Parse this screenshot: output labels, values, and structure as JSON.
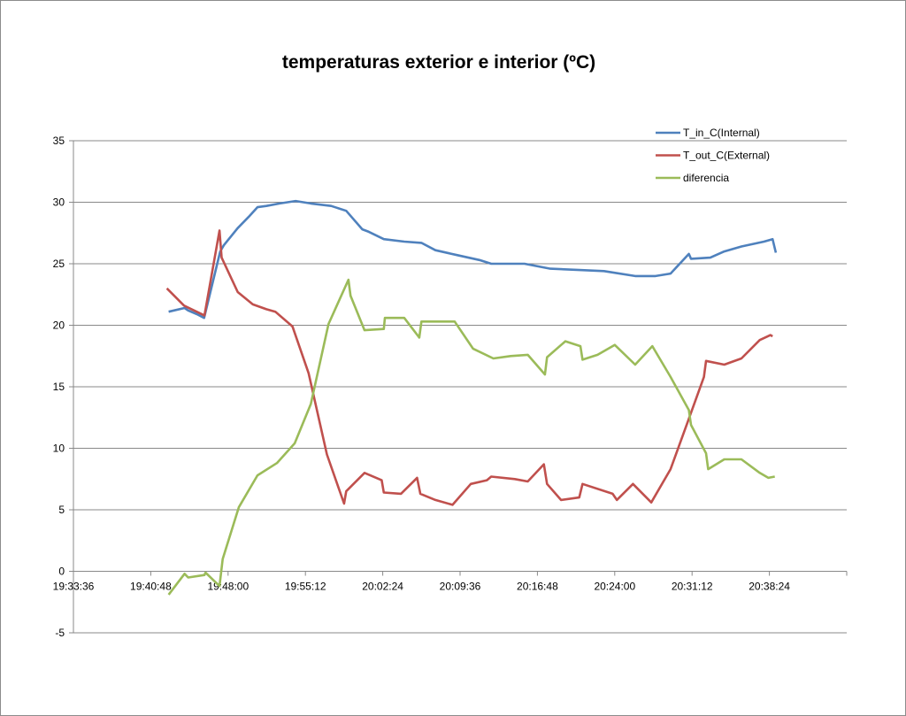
{
  "chart_data": {
    "type": "line",
    "title": "temperaturas exterior e interior (ºC)",
    "xlabel": "",
    "ylabel": "",
    "ylim": [
      -5,
      35
    ],
    "yticks": [
      "-5",
      "0",
      "5",
      "10",
      "15",
      "20",
      "25",
      "30",
      "35"
    ],
    "xlim": [
      "19:33:36",
      "20:45:36"
    ],
    "xticks": [
      "19:33:36",
      "19:40:48",
      "19:48:00",
      "19:55:12",
      "20:02:24",
      "20:09:36",
      "20:16:48",
      "20:24:00",
      "20:31:12",
      "20:38:24"
    ],
    "grid": true,
    "legend_position": "top-right",
    "series": [
      {
        "name": "T_in_C(Internal)",
        "color": "#4f81bd",
        "points": [
          [
            "19:42:28",
            21.1
          ],
          [
            "19:43:57",
            21.4
          ],
          [
            "19:44:17",
            21.2
          ],
          [
            "19:45:06",
            20.9
          ],
          [
            "19:45:46",
            20.6
          ],
          [
            "19:47:16",
            26.0
          ],
          [
            "19:47:36",
            26.5
          ],
          [
            "19:48:54",
            27.9
          ],
          [
            "19:49:54",
            28.8
          ],
          [
            "19:50:44",
            29.6
          ],
          [
            "19:51:34",
            29.7
          ],
          [
            "19:52:48",
            29.9
          ],
          [
            "19:54:17",
            30.1
          ],
          [
            "19:55:42",
            29.9
          ],
          [
            "19:57:36",
            29.7
          ],
          [
            "19:59:00",
            29.3
          ],
          [
            "20:00:30",
            27.8
          ],
          [
            "20:01:06",
            27.6
          ],
          [
            "20:02:30",
            27.0
          ],
          [
            "20:04:24",
            26.8
          ],
          [
            "20:06:00",
            26.7
          ],
          [
            "20:07:18",
            26.1
          ],
          [
            "20:09:21",
            25.7
          ],
          [
            "20:11:24",
            25.3
          ],
          [
            "20:12:30",
            25.0
          ],
          [
            "20:15:36",
            25.0
          ],
          [
            "20:18:00",
            24.6
          ],
          [
            "20:20:30",
            24.5
          ],
          [
            "20:23:00",
            24.4
          ],
          [
            "20:25:54",
            24.0
          ],
          [
            "20:27:48",
            24.0
          ],
          [
            "20:29:12",
            24.2
          ],
          [
            "20:30:54",
            25.8
          ],
          [
            "20:31:06",
            25.4
          ],
          [
            "20:32:54",
            25.5
          ],
          [
            "20:34:12",
            26.0
          ],
          [
            "20:35:48",
            26.4
          ],
          [
            "20:37:54",
            26.8
          ],
          [
            "20:38:42",
            27.0
          ],
          [
            "20:39:00",
            25.9
          ]
        ]
      },
      {
        "name": "T_out_C(External)",
        "color": "#c0504d",
        "points": [
          [
            "19:42:18",
            23.0
          ],
          [
            "19:43:54",
            21.6
          ],
          [
            "19:45:48",
            20.8
          ],
          [
            "19:47:12",
            27.7
          ],
          [
            "19:47:24",
            25.5
          ],
          [
            "19:48:54",
            22.7
          ],
          [
            "19:50:18",
            21.7
          ],
          [
            "19:51:34",
            21.3
          ],
          [
            "19:52:24",
            21.1
          ],
          [
            "19:54:00",
            19.9
          ],
          [
            "19:55:30",
            16.1
          ],
          [
            "19:57:12",
            9.5
          ],
          [
            "19:58:48",
            5.5
          ],
          [
            "19:59:00",
            6.5
          ],
          [
            "20:00:42",
            8.0
          ],
          [
            "20:02:18",
            7.4
          ],
          [
            "20:02:30",
            6.4
          ],
          [
            "20:04:06",
            6.3
          ],
          [
            "20:05:36",
            7.6
          ],
          [
            "20:05:54",
            6.3
          ],
          [
            "20:07:18",
            5.8
          ],
          [
            "20:08:54",
            5.4
          ],
          [
            "20:10:36",
            7.1
          ],
          [
            "20:12:06",
            7.4
          ],
          [
            "20:12:30",
            7.7
          ],
          [
            "20:14:42",
            7.5
          ],
          [
            "20:15:54",
            7.3
          ],
          [
            "20:17:24",
            8.7
          ],
          [
            "20:17:42",
            7.1
          ],
          [
            "20:19:00",
            5.8
          ],
          [
            "20:20:42",
            6.0
          ],
          [
            "20:21:00",
            7.1
          ],
          [
            "20:23:48",
            6.3
          ],
          [
            "20:24:12",
            5.8
          ],
          [
            "20:25:42",
            7.1
          ],
          [
            "20:27:24",
            5.6
          ],
          [
            "20:29:12",
            8.3
          ],
          [
            "20:30:54",
            12.4
          ],
          [
            "20:32:18",
            15.8
          ],
          [
            "20:32:30",
            17.1
          ],
          [
            "20:34:12",
            16.8
          ],
          [
            "20:35:48",
            17.3
          ],
          [
            "20:37:30",
            18.8
          ],
          [
            "20:38:30",
            19.2
          ],
          [
            "20:38:42",
            19.1
          ]
        ]
      },
      {
        "name": "diferencia",
        "color": "#9bbb59",
        "points": [
          [
            "19:42:28",
            -1.9
          ],
          [
            "19:43:57",
            -0.2
          ],
          [
            "19:44:17",
            -0.5
          ],
          [
            "19:45:48",
            -0.3
          ],
          [
            "19:45:54",
            -0.1
          ],
          [
            "19:47:12",
            -1.2
          ],
          [
            "19:47:30",
            1.0
          ],
          [
            "19:49:00",
            5.2
          ],
          [
            "19:50:44",
            7.8
          ],
          [
            "19:52:33",
            8.8
          ],
          [
            "19:54:12",
            10.4
          ],
          [
            "19:55:42",
            13.6
          ],
          [
            "19:57:21",
            20.1
          ],
          [
            "19:59:12",
            23.7
          ],
          [
            "19:59:24",
            22.4
          ],
          [
            "20:00:42",
            19.6
          ],
          [
            "20:02:30",
            19.7
          ],
          [
            "20:02:36",
            20.6
          ],
          [
            "20:04:24",
            20.6
          ],
          [
            "20:05:48",
            19.0
          ],
          [
            "20:06:00",
            20.3
          ],
          [
            "20:07:42",
            20.3
          ],
          [
            "20:09:06",
            20.3
          ],
          [
            "20:10:48",
            18.1
          ],
          [
            "20:12:42",
            17.3
          ],
          [
            "20:14:18",
            17.5
          ],
          [
            "20:15:54",
            17.6
          ],
          [
            "20:17:30",
            16.0
          ],
          [
            "20:17:42",
            17.4
          ],
          [
            "20:19:24",
            18.7
          ],
          [
            "20:20:48",
            18.3
          ],
          [
            "20:21:00",
            17.2
          ],
          [
            "20:22:24",
            17.6
          ],
          [
            "20:23:48",
            18.3
          ],
          [
            "20:24:00",
            18.4
          ],
          [
            "20:25:54",
            16.8
          ],
          [
            "20:27:30",
            18.3
          ],
          [
            "20:29:12",
            15.8
          ],
          [
            "20:30:54",
            13.1
          ],
          [
            "20:31:06",
            11.9
          ],
          [
            "20:32:30",
            9.6
          ],
          [
            "20:32:42",
            8.3
          ],
          [
            "20:34:12",
            9.1
          ],
          [
            "20:35:48",
            9.1
          ],
          [
            "20:37:30",
            8.0
          ],
          [
            "20:38:18",
            7.6
          ],
          [
            "20:38:54",
            7.7
          ]
        ]
      }
    ]
  }
}
